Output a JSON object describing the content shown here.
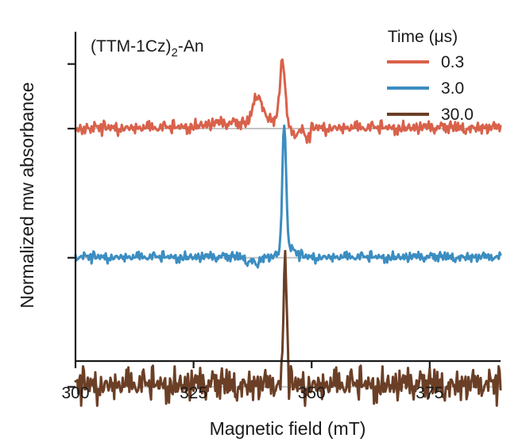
{
  "chart_data": {
    "type": "line",
    "title": "(TTM-1Cz)2-An",
    "title_main": "(TTM-1Cz)",
    "title_sub": "2",
    "title_suffix": "-An",
    "xlabel": "Magnetic field (mT)",
    "ylabel": "Normalized mw absorbance",
    "xlim": [
      300,
      390
    ],
    "xticks": [
      300,
      325,
      350,
      375
    ],
    "xtick_labels": [
      "300",
      "325",
      "350",
      "375"
    ],
    "ylim": [
      -0.6,
      4.5
    ],
    "grid": false,
    "legend": {
      "title": "Time (μs)",
      "placement": "top-right"
    },
    "series": [
      {
        "name": "0.3",
        "color": "#d9614a",
        "offset": 3.0,
        "noise": 0.05,
        "features": [
          {
            "center": 338.5,
            "width": 0.9,
            "amp": 0.45
          },
          {
            "center": 343.8,
            "width": 0.55,
            "amp": 1.0
          },
          {
            "center": 332.0,
            "width": 5.0,
            "amp": 0.07
          },
          {
            "center": 341.0,
            "width": 2.0,
            "amp": 0.12
          },
          {
            "center": 346.5,
            "width": 0.8,
            "amp": -0.1
          },
          {
            "center": 349.0,
            "width": 0.55,
            "amp": -0.18
          }
        ]
      },
      {
        "name": "3.0",
        "color": "#3b8dc1",
        "offset": 1.0,
        "noise": 0.04,
        "features": [
          {
            "center": 344.2,
            "width": 0.4,
            "amp": 2.0
          },
          {
            "center": 345.3,
            "width": 1.4,
            "amp": 0.12
          },
          {
            "center": 338.4,
            "width": 0.55,
            "amp": -0.12
          },
          {
            "center": 336.5,
            "width": 0.6,
            "amp": -0.06
          }
        ]
      },
      {
        "name": "30.0",
        "color": "#6b3f26",
        "offset": -1.0,
        "noise": 0.13,
        "features": [
          {
            "center": 344.4,
            "width": 0.33,
            "amp": 2.0
          }
        ]
      }
    ]
  }
}
